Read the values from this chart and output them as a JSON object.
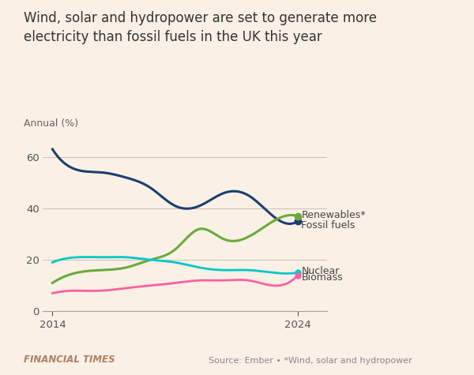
{
  "title": "Wind, solar and hydropower are set to generate more\nelectricity than fossil fuels in the UK this year",
  "ylabel": "Annual (%)",
  "background_color": "#faf0e6",
  "years": [
    2014,
    2015,
    2016,
    2017,
    2018,
    2019,
    2020,
    2021,
    2022,
    2023,
    2024
  ],
  "fossil_fuels": [
    63,
    55,
    54,
    52,
    48,
    41,
    41,
    46,
    45,
    37,
    35
  ],
  "renewables": [
    11,
    15,
    16,
    17,
    20,
    24,
    32,
    28,
    29,
    35,
    37
  ],
  "nuclear": [
    19,
    21,
    21,
    21,
    20,
    19,
    17,
    16,
    16,
    15,
    15
  ],
  "biomass": [
    7,
    8,
    8,
    9,
    10,
    11,
    12,
    12,
    12,
    10,
    14
  ],
  "fossil_color": "#1b3f6e",
  "renewables_color": "#6aaa3a",
  "nuclear_color": "#00c8c8",
  "biomass_color": "#ff5fa0",
  "ylim": [
    0,
    70
  ],
  "yticks": [
    0,
    20,
    40,
    60
  ],
  "xticks": [
    2014,
    2024
  ],
  "ft_label": "FINANCIAL TIMES",
  "source_text": "Source: Ember • *Wind, solar and hydropower",
  "legend_items": [
    {
      "label": "Renewables*",
      "color": "#6aaa3a"
    },
    {
      "label": "Fossil fuels",
      "color": "#1b3f6e"
    },
    {
      "label": "Nuclear",
      "color": "#00c8c8"
    },
    {
      "label": "Biomass",
      "color": "#ff5fa0"
    }
  ]
}
